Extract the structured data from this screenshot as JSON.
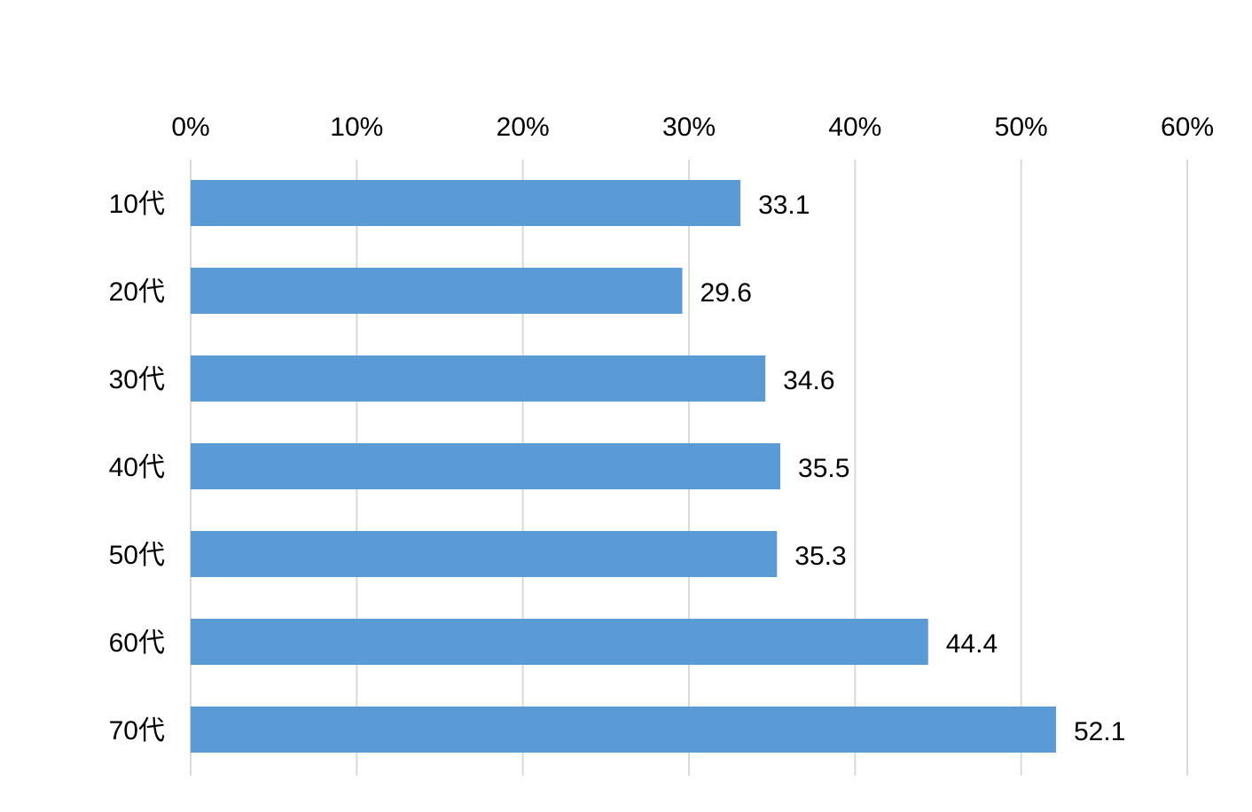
{
  "chart_data": {
    "type": "bar",
    "orientation": "horizontal",
    "categories": [
      "10代",
      "20代",
      "30代",
      "40代",
      "50代",
      "60代",
      "70代"
    ],
    "values": [
      33.1,
      29.6,
      34.6,
      35.5,
      35.3,
      44.4,
      52.1
    ],
    "value_labels": [
      "33.1",
      "29.6",
      "34.6",
      "35.5",
      "35.3",
      "44.4",
      "52.1"
    ],
    "x_ticks": [
      "0%",
      "10%",
      "20%",
      "30%",
      "40%",
      "50%",
      "60%"
    ],
    "xlim": [
      0,
      60
    ],
    "x_axis_position": "top",
    "grid": true,
    "legend": "none",
    "title": "",
    "xlabel": "",
    "ylabel": "",
    "colors": {
      "bar": "#5b9bd5",
      "grid": "#d9d9d9",
      "text": "#000000"
    }
  }
}
